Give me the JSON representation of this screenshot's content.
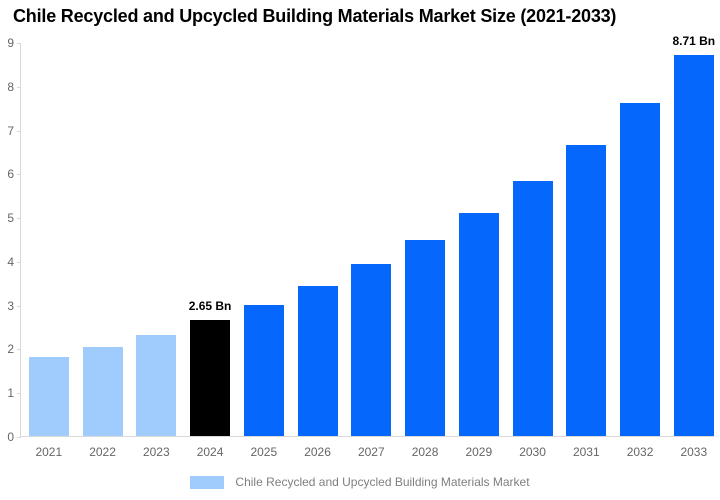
{
  "title": "Chile Recycled and Upcycled Building Materials Market Size (2021-2033)",
  "chart_data": {
    "type": "bar",
    "categories": [
      "2021",
      "2022",
      "2023",
      "2024",
      "2025",
      "2026",
      "2027",
      "2028",
      "2029",
      "2030",
      "2031",
      "2032",
      "2033"
    ],
    "values": [
      1.8,
      2.03,
      2.3,
      2.65,
      3.0,
      3.42,
      3.92,
      4.48,
      5.1,
      5.82,
      6.64,
      7.6,
      8.71
    ],
    "bar_colors": [
      "#9FCCFD",
      "#9FCCFD",
      "#9FCCFD",
      "#000000",
      "#0567FB",
      "#0567FB",
      "#0567FB",
      "#0567FB",
      "#0567FB",
      "#0567FB",
      "#0567FB",
      "#0567FB",
      "#0567FB"
    ],
    "annotations": [
      {
        "index": 3,
        "text": "2.65 Bn"
      },
      {
        "index": 12,
        "text": "8.71 Bn"
      }
    ],
    "title": "Chile Recycled and Upcycled Building Materials Market Size (2021-2033)",
    "xlabel": "",
    "ylabel": "",
    "ylim": [
      0,
      9
    ],
    "yticks": [
      0,
      1,
      2,
      3,
      4,
      5,
      6,
      7,
      8,
      9
    ],
    "grid": false,
    "legend": {
      "position": "bottom",
      "label": "Chile Recycled and Upcycled Building Materials Market",
      "swatch_color": "#9FCCFD"
    }
  },
  "colors": {
    "axis_line": "#d9d9d9",
    "tick_label": "#666666",
    "annotation": "#000000",
    "legend_text": "#7f7f7f"
  }
}
